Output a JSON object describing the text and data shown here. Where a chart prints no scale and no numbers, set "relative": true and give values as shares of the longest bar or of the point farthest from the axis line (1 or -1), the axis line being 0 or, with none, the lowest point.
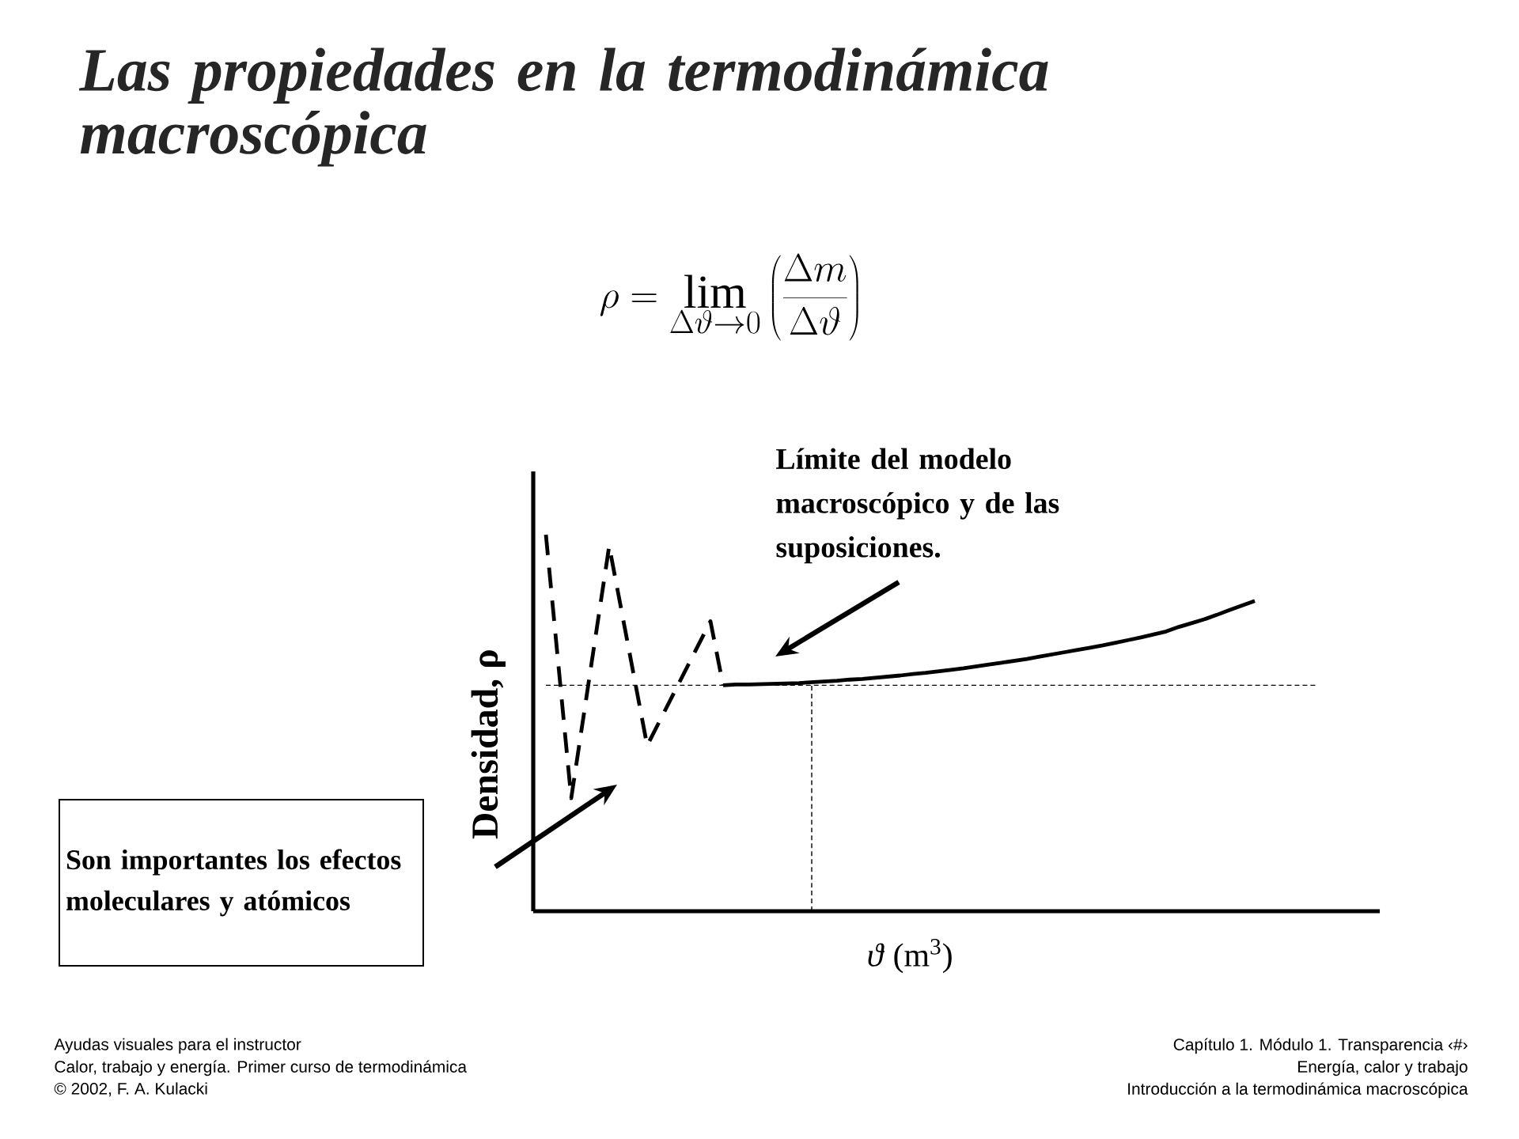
{
  "chart_data": {
    "type": "line",
    "relative": true,
    "title": "Las propiedades en la termodinámica macroscópica",
    "xlabel": "*ϑ* (m$^{3}$)",
    "ylabel": "Densidad, ρ",
    "categories": [
      null,
      null,
      null,
      null,
      null,
      null,
      null,
      null,
      null,
      null,
      null,
      null,
      null,
      null,
      null,
      null,
      null,
      null,
      null,
      null,
      null,
      null,
      null,
      null,
      null,
      null,
      null,
      null,
      null,
      null,
      null,
      null,
      null,
      null,
      null,
      null,
      null,
      null,
      null,
      null,
      null,
      null,
      null,
      null,
      null,
      null,
      null,
      null,
      null,
      null,
      null,
      null,
      null,
      null,
      null,
      null,
      null
    ],
    "series": [
      {
        "line_style": "dashed",
        "color": "#000000",
        "values": [
          1.0,
          null,
          0.3,
          null,
          null,
          0.97,
          null,
          null,
          0.44,
          null,
          null,
          null,
          null,
          0.77,
          0.6,
          null,
          null,
          null,
          null,
          null,
          null,
          null,
          null,
          null,
          null,
          null,
          null,
          null,
          null,
          null,
          null,
          null,
          null,
          null,
          null,
          null,
          null,
          null,
          null,
          null,
          null,
          null,
          null,
          null,
          null,
          null,
          null,
          null,
          null,
          null,
          null,
          null,
          null,
          null,
          null,
          null,
          null
        ]
      },
      {
        "line_style": "solid",
        "color": "#000000",
        "values": [
          null,
          null,
          null,
          null,
          null,
          null,
          null,
          null,
          null,
          null,
          null,
          null,
          null,
          null,
          0.6,
          0.602,
          0.602,
          0.603,
          0.604,
          0.605,
          0.606,
          0.608,
          0.61,
          0.612,
          0.615,
          0.617,
          0.62,
          0.623,
          0.626,
          0.63,
          0.633,
          0.637,
          0.641,
          0.645,
          0.65,
          0.655,
          0.66,
          0.665,
          0.67,
          0.676,
          0.682,
          0.688,
          0.694,
          0.7,
          0.706,
          0.713,
          0.72,
          0.727,
          0.735,
          0.743,
          0.755,
          0.765,
          0.775,
          0.787,
          0.8,
          0.812,
          0.824
        ]
      }
    ],
    "ref_lines": [
      {
        "axis": "y",
        "value": 0.6,
        "line_style": "dashed",
        "color": "#000000"
      }
    ],
    "annotations": [
      "\\rho = \\lim_{\\Delta\\vartheta \\to 0}\\left(\\frac{\\Delta m}{\\Delta\\vartheta}\\right)",
      "Límite del modelo macroscópico y de las suposiciones.",
      "Son importantes los efectos moleculares y atómicos",
      "Ayudas visuales para el instructor",
      "Calor, trabajo y energía.  Primer curso de termodinámica",
      "© 2002, F. A. Kulacki",
      "Capítulo 1. Módulo 1.  Transparencia ‹#›",
      "Energía, calor y trabajo",
      "Introducción a la termodinámica macroscópica"
    ]
  }
}
